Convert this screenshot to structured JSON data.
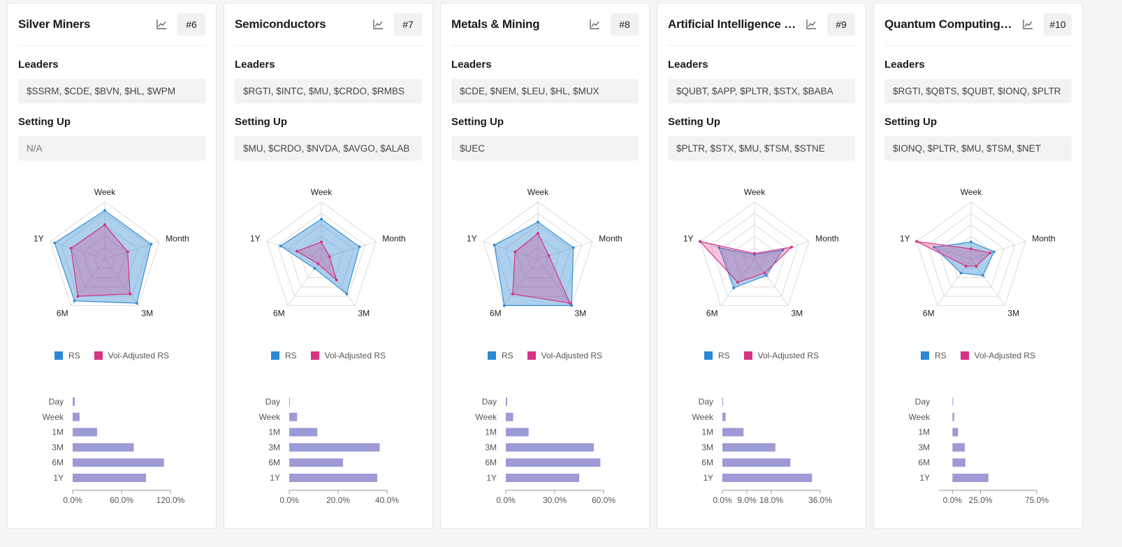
{
  "legend": {
    "rs": "RS",
    "vol": "Vol-Adjusted RS"
  },
  "colors": {
    "rs": "#3a8fd4",
    "vol": "#d63384",
    "bar": "#9d9ad6"
  },
  "section_labels": {
    "leaders": "Leaders",
    "setting_up": "Setting Up"
  },
  "radar_axes": [
    "Week",
    "Month",
    "3M",
    "6M",
    "1Y"
  ],
  "bar_categories": [
    "Day",
    "Week",
    "1M",
    "3M",
    "6M",
    "1Y"
  ],
  "cards": [
    {
      "title": "Silver Miners",
      "rank": "#6",
      "leaders": "$SSRM, $CDE, $BVN, $HL, $WPM",
      "setting_up": "N/A",
      "chart_data": [
        {
          "type": "radar",
          "axes": [
            "Week",
            "Month",
            "3M",
            "6M",
            "1Y"
          ],
          "series": [
            {
              "name": "RS",
              "values": [
                0.85,
                0.85,
                0.95,
                0.9,
                0.92
              ]
            },
            {
              "name": "Vol-Adjusted RS",
              "values": [
                0.6,
                0.42,
                0.75,
                0.8,
                0.62
              ]
            }
          ]
        },
        {
          "type": "bar",
          "categories": [
            "Day",
            "Week",
            "1M",
            "3M",
            "6M",
            "1Y"
          ],
          "values": [
            2.5,
            8.5,
            30,
            75,
            112,
            90
          ],
          "xticks": [
            0,
            60,
            120
          ],
          "xtick_labels": [
            "0.0%",
            "60.0%",
            "120.0%"
          ],
          "xlim": [
            0,
            120
          ]
        }
      ]
    },
    {
      "title": "Semiconductors",
      "rank": "#7",
      "leaders": "$RGTI, $INTC, $MU, $CRDO, $RMBS",
      "setting_up": "$MU, $CRDO, $NVDA, $AVGO, $ALAB",
      "chart_data": [
        {
          "type": "radar",
          "axes": [
            "Week",
            "Month",
            "3M",
            "6M",
            "1Y"
          ],
          "series": [
            {
              "name": "RS",
              "values": [
                0.7,
                0.7,
                0.75,
                0.2,
                0.75
              ]
            },
            {
              "name": "Vol-Adjusted RS",
              "values": [
                0.3,
                0.15,
                0.45,
                0.1,
                0.45
              ]
            }
          ]
        },
        {
          "type": "bar",
          "categories": [
            "Day",
            "Week",
            "1M",
            "3M",
            "6M",
            "1Y"
          ],
          "values": [
            0,
            3.2,
            11.5,
            37,
            22,
            36
          ],
          "xticks": [
            0,
            20,
            40
          ],
          "xtick_labels": [
            "0.0%",
            "20.0%",
            "40.0%"
          ],
          "xlim": [
            0,
            40
          ]
        }
      ]
    },
    {
      "title": "Metals & Mining",
      "rank": "#8",
      "leaders": "$CDE, $NEM, $LEU, $HL, $MUX",
      "setting_up": "$UEC",
      "chart_data": [
        {
          "type": "radar",
          "axes": [
            "Week",
            "Month",
            "3M",
            "6M",
            "1Y"
          ],
          "series": [
            {
              "name": "RS",
              "values": [
                0.65,
                0.65,
                1.0,
                1.0,
                0.8
              ]
            },
            {
              "name": "Vol-Adjusted RS",
              "values": [
                0.45,
                0.2,
                0.95,
                0.75,
                0.42
              ]
            }
          ]
        },
        {
          "type": "bar",
          "categories": [
            "Day",
            "Week",
            "1M",
            "3M",
            "6M",
            "1Y"
          ],
          "values": [
            0.5,
            4.5,
            14,
            54,
            58,
            45
          ],
          "xticks": [
            0,
            30,
            60
          ],
          "xtick_labels": [
            "0.0%",
            "30.0%",
            "60.0%"
          ],
          "xlim": [
            0,
            60
          ]
        }
      ]
    },
    {
      "title": "Artificial Intelligence Stocks",
      "rank": "#9",
      "leaders": "$QUBT, $APP, $PLTR, $STX, $BABA",
      "setting_up": "$PLTR, $STX, $MU, $TSM, $STNE",
      "chart_data": [
        {
          "type": "radar",
          "axes": [
            "Week",
            "Month",
            "3M",
            "6M",
            "1Y"
          ],
          "series": [
            {
              "name": "RS",
              "values": [
                0.08,
                0.52,
                0.35,
                0.62,
                0.65
              ]
            },
            {
              "name": "Vol-Adjusted RS",
              "values": [
                0.1,
                0.68,
                0.3,
                0.5,
                1.0
              ]
            }
          ]
        },
        {
          "type": "bar",
          "categories": [
            "Day",
            "Week",
            "1M",
            "3M",
            "6M",
            "1Y"
          ],
          "values": [
            0,
            1.2,
            7.8,
            19.5,
            25,
            33
          ],
          "xticks": [
            0,
            9,
            18,
            36
          ],
          "xtick_labels": [
            "0.0%",
            "9.0%",
            "18.0%",
            "36.0%"
          ],
          "xlim": [
            0,
            36
          ]
        }
      ]
    },
    {
      "title": "Quantum Computing Stocks",
      "rank": "#10",
      "leaders": "$RGTI, $QBTS, $QUBT, $IONQ, $PLTR",
      "setting_up": "$IONQ, $PLTR, $MU, $TSM, $NET",
      "chart_data": [
        {
          "type": "radar",
          "axes": [
            "Week",
            "Month",
            "3M",
            "6M",
            "1Y"
          ],
          "series": [
            {
              "name": "RS",
              "values": [
                0.3,
                0.42,
                0.35,
                0.3,
                0.68
              ]
            },
            {
              "name": "Vol-Adjusted RS",
              "values": [
                0.18,
                0.35,
                0.15,
                0.15,
                1.0
              ]
            }
          ]
        },
        {
          "type": "bar",
          "categories": [
            "Day",
            "Week",
            "1M",
            "3M",
            "6M",
            "1Y"
          ],
          "values": [
            0,
            1.5,
            5,
            11,
            11.5,
            32
          ],
          "xticks": [
            0,
            25,
            75
          ],
          "xtick_labels": [
            "0.0%",
            "25.0%",
            "75.0%"
          ],
          "xlim": [
            -12,
            75
          ]
        }
      ]
    }
  ]
}
